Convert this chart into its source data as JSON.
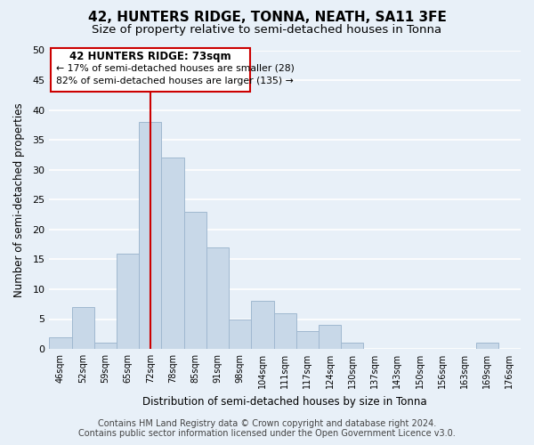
{
  "title": "42, HUNTERS RIDGE, TONNA, NEATH, SA11 3FE",
  "subtitle": "Size of property relative to semi-detached houses in Tonna",
  "xlabel": "Distribution of semi-detached houses by size in Tonna",
  "ylabel": "Number of semi-detached properties",
  "bin_labels": [
    "46sqm",
    "52sqm",
    "59sqm",
    "65sqm",
    "72sqm",
    "78sqm",
    "85sqm",
    "91sqm",
    "98sqm",
    "104sqm",
    "111sqm",
    "117sqm",
    "124sqm",
    "130sqm",
    "137sqm",
    "143sqm",
    "150sqm",
    "156sqm",
    "163sqm",
    "169sqm",
    "176sqm"
  ],
  "bin_values": [
    2,
    7,
    1,
    16,
    38,
    32,
    23,
    17,
    5,
    8,
    6,
    3,
    4,
    1,
    0,
    0,
    0,
    0,
    0,
    1,
    0
  ],
  "bar_color": "#c8d8e8",
  "bar_edge_color": "#a0b8d0",
  "vline_index": 4,
  "vline_color": "#cc0000",
  "ylim": [
    0,
    50
  ],
  "yticks": [
    0,
    5,
    10,
    15,
    20,
    25,
    30,
    35,
    40,
    45,
    50
  ],
  "annotation_title": "42 HUNTERS RIDGE: 73sqm",
  "annotation_line1": "← 17% of semi-detached houses are smaller (28)",
  "annotation_line2": "82% of semi-detached houses are larger (135) →",
  "annotation_box_color": "#ffffff",
  "annotation_box_edge": "#cc0000",
  "footer_line1": "Contains HM Land Registry data © Crown copyright and database right 2024.",
  "footer_line2": "Contains public sector information licensed under the Open Government Licence v3.0.",
  "background_color": "#e8f0f8",
  "grid_color": "#d0dce8",
  "title_fontsize": 11,
  "subtitle_fontsize": 9.5,
  "footer_fontsize": 7
}
